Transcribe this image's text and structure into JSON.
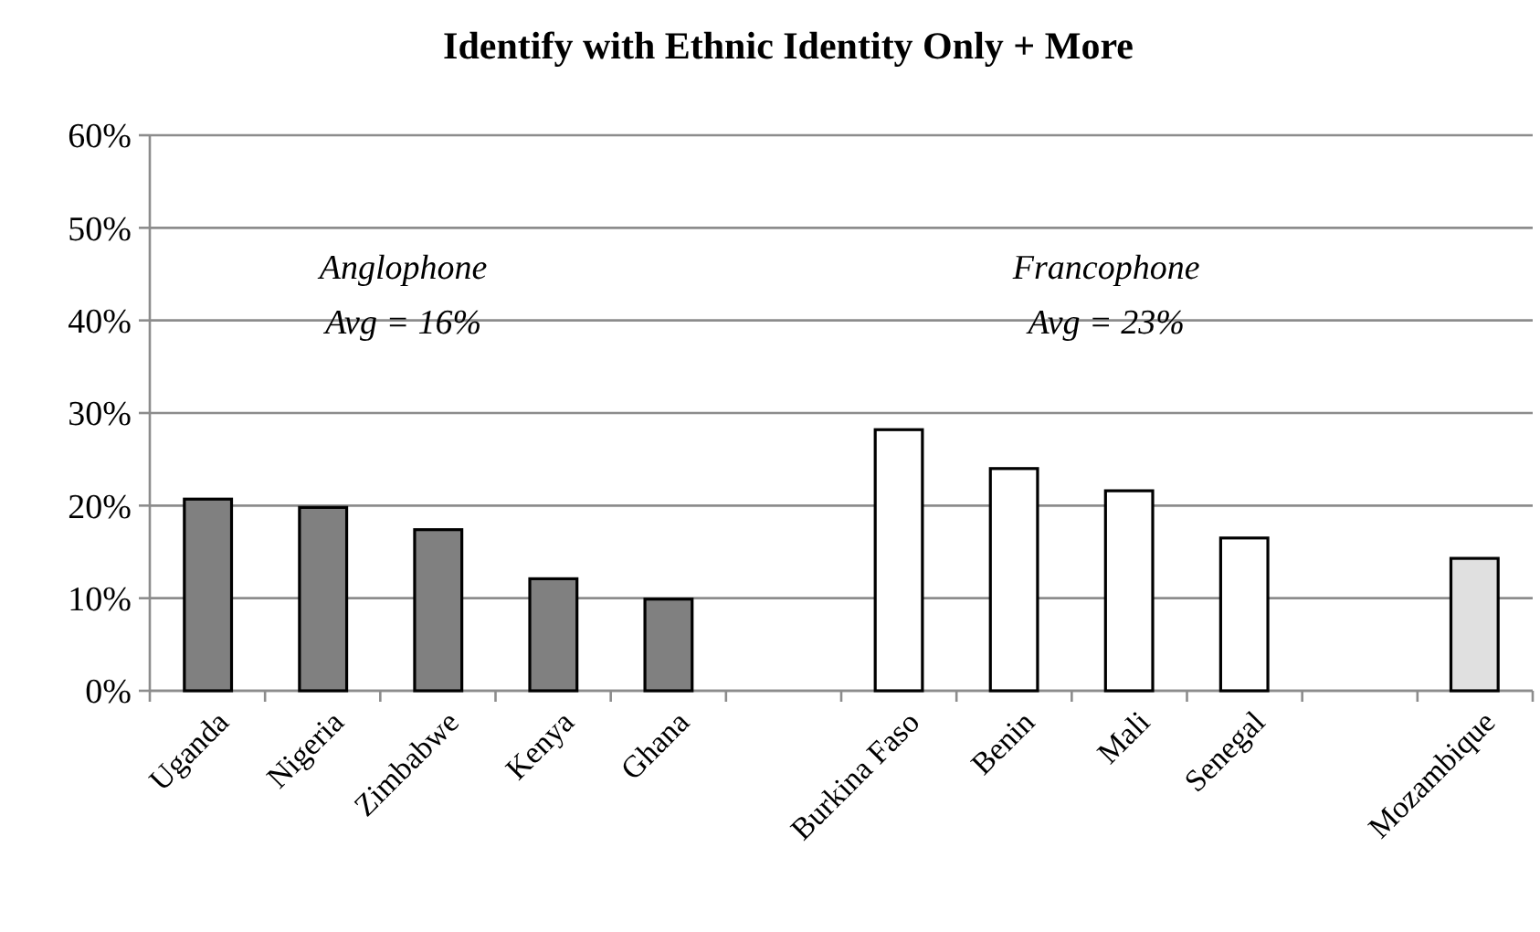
{
  "chart_data": {
    "type": "bar",
    "title": "Identify with Ethnic Identity Only + More",
    "categories": [
      "Uganda",
      "Nigeria",
      "Zimbabwe",
      "Kenya",
      "Ghana",
      null,
      "Burkina Faso",
      "Benin",
      "Mali",
      "Senegal",
      null,
      "Mozambique"
    ],
    "values": [
      20.7,
      19.8,
      17.4,
      12.1,
      9.9,
      null,
      28.2,
      24.0,
      21.6,
      16.5,
      null,
      14.3
    ],
    "colors": [
      "#808080",
      "#808080",
      "#808080",
      "#808080",
      "#808080",
      null,
      "#ffffff",
      "#ffffff",
      "#ffffff",
      "#ffffff",
      null,
      "#e0e0e0"
    ],
    "ylim": [
      0,
      60
    ],
    "yticks": [
      {
        "value": 0,
        "label": "0%"
      },
      {
        "value": 10,
        "label": "10%"
      },
      {
        "value": 20,
        "label": "20%"
      },
      {
        "value": 30,
        "label": "30%"
      },
      {
        "value": 40,
        "label": "40%"
      },
      {
        "value": 50,
        "label": "50%"
      },
      {
        "value": 60,
        "label": "60%"
      }
    ],
    "grid": "y",
    "annotations": [
      "Anglophone\nAvg = 16%",
      "Francophone\nAvg = 23%"
    ]
  }
}
